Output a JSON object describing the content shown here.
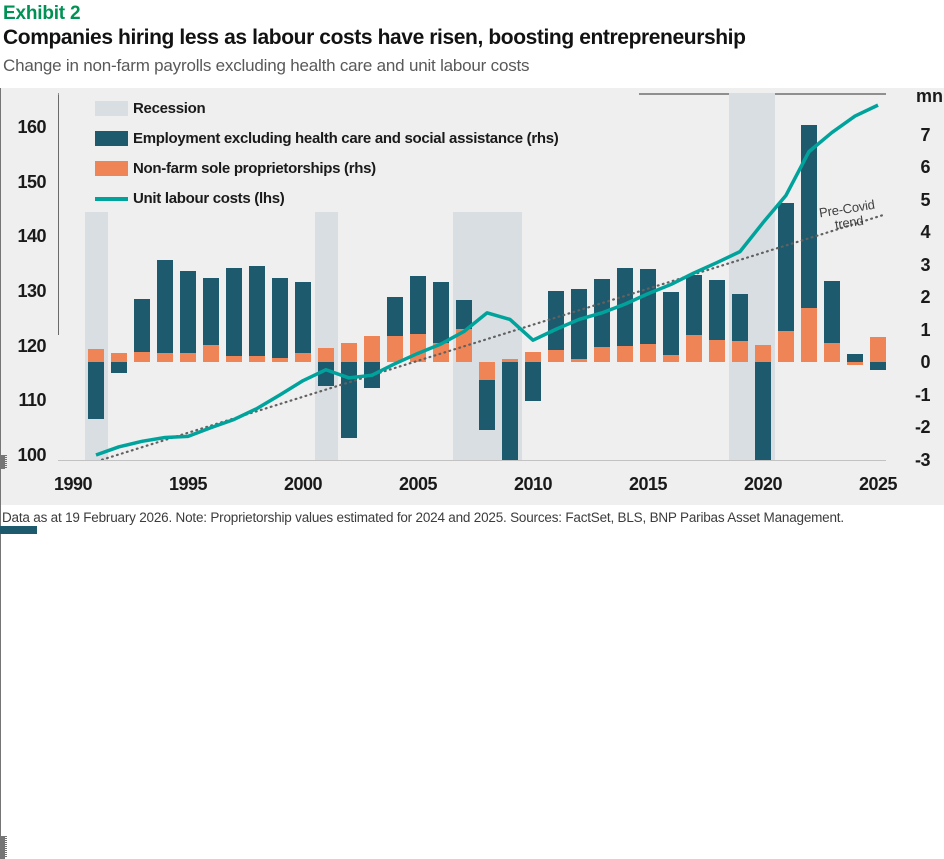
{
  "header": {
    "exhibit": "Exhibit 2",
    "title": "Companies hiring less as labour costs have risen, boosting entrepreneurship",
    "subtitle": "Change in non-farm payrolls excluding health care and unit labour costs"
  },
  "footer": {
    "note": "Data as at 19 February 2026. Note: Proprietorship values estimated for 2024 and 2025. Sources: FactSet, BLS, BNP Paribas Asset Management."
  },
  "colors": {
    "accent_green": "#009254",
    "employment_bar": "#1e5a6d",
    "proprietor_bar": "#ef8557",
    "ulc_line": "#00a39c",
    "recession_band": "#d9dee2",
    "panel_bg": "#efeff0",
    "trend_dotted": "#616161"
  },
  "chart_data": {
    "type": "combo-bar-line",
    "title": "Companies hiring less as labour costs have risen, boosting entrepreneurship",
    "x_axis": {
      "start": 1990,
      "end": 2025,
      "labeled_years": [
        1990,
        1995,
        2000,
        2005,
        2010,
        2015,
        2020,
        2025
      ]
    },
    "left_axis": {
      "name": "Unit labour costs index (lhs)",
      "min": 100,
      "max": 160,
      "tick_step": 10,
      "minor_step": 5
    },
    "right_axis": {
      "name": "mn",
      "unit_label": "mn",
      "min": -3,
      "max": 7,
      "tick_step": 1,
      "minor_step": 0.5
    },
    "legend": [
      {
        "label": "Recession",
        "type": "band",
        "color_key": "recession_band"
      },
      {
        "label": "Employment excluding health care and social assistance  (rhs)",
        "type": "bar",
        "color_key": "employment_bar"
      },
      {
        "label": "Non-farm sole proprietorships (rhs)",
        "type": "bar",
        "color_key": "proprietor_bar"
      },
      {
        "label": "Unit labour costs (lhs)",
        "type": "line",
        "color_key": "ulc_line"
      }
    ],
    "recession_bands": [
      {
        "start": 1990.5,
        "end": 1991.5
      },
      {
        "start": 2000.5,
        "end": 2001.5
      },
      {
        "start": 2006.5,
        "end": 2009.5
      },
      {
        "start": 2018.5,
        "end": 2020.5
      }
    ],
    "years": [
      1991,
      1992,
      1993,
      1994,
      1995,
      1996,
      1997,
      1998,
      1999,
      2000,
      2001,
      2002,
      2003,
      2004,
      2005,
      2006,
      2007,
      2008,
      2009,
      2010,
      2011,
      2012,
      2013,
      2014,
      2015,
      2016,
      2017,
      2018,
      2019,
      2020,
      2021,
      2022,
      2023,
      2024,
      2025
    ],
    "series": [
      {
        "name": "Employment excluding health care and social assistance (rhs)",
        "type": "bar",
        "axis": "right",
        "values": [
          -1.75,
          -0.35,
          1.95,
          3.15,
          2.8,
          2.6,
          2.9,
          2.95,
          2.6,
          2.45,
          -0.75,
          -2.35,
          -0.8,
          2.0,
          2.65,
          2.45,
          1.9,
          -2.1,
          -3.05,
          -1.2,
          2.2,
          2.25,
          2.55,
          2.88,
          2.85,
          2.15,
          2.67,
          2.51,
          2.08,
          -3.2,
          4.9,
          7.3,
          2.5,
          0.25,
          -0.25
        ],
        "note_2020": "bar clipped at bottom of plot"
      },
      {
        "name": "Non-farm sole proprietorships (rhs)",
        "type": "bar",
        "axis": "right",
        "values": [
          0.4,
          0.29,
          0.32,
          0.27,
          0.29,
          0.51,
          0.19,
          0.17,
          0.11,
          0.27,
          0.42,
          0.6,
          0.79,
          0.81,
          0.86,
          0.58,
          1.02,
          -0.54,
          0.08,
          0.3,
          0.38,
          0.09,
          0.46,
          0.5,
          0.55,
          0.23,
          0.84,
          0.69,
          0.66,
          0.53,
          0.95,
          1.66,
          0.59,
          -0.08,
          0.77
        ]
      },
      {
        "name": "Unit labour costs (lhs)",
        "type": "line",
        "axis": "left",
        "values": [
          100,
          101.5,
          102.5,
          103.2,
          103.4,
          105,
          106.5,
          108.5,
          111,
          113.6,
          115.6,
          114.1,
          114.6,
          116.7,
          118.6,
          120.3,
          122.6,
          126,
          124.8,
          121,
          123,
          124.8,
          126,
          127.6,
          129.5,
          131.2,
          133.3,
          135.2,
          137.2,
          142.5,
          147.5,
          155.5,
          159,
          162,
          164
        ]
      }
    ],
    "trend_line": {
      "label": "Pre-Covid trend",
      "label_lines": [
        "Pre-Covid",
        "trend"
      ],
      "axis": "left",
      "x1": 1990.4,
      "v1": 98,
      "x2": 2025.3,
      "v2": 144
    }
  }
}
